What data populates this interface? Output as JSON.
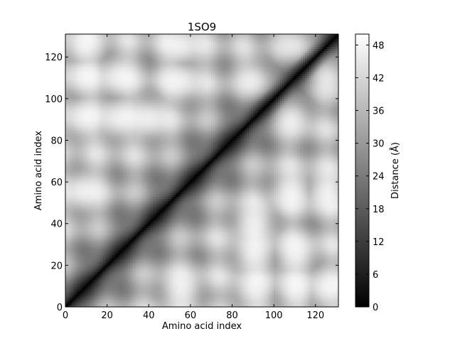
{
  "chart_data": {
    "type": "heatmap",
    "title": "1SO9",
    "xlabel": "Amino acid index",
    "ylabel": "Amino acid index",
    "n_residues": 131,
    "xlim": [
      0,
      131
    ],
    "ylim": [
      0,
      131
    ],
    "xticks": [
      0,
      20,
      40,
      60,
      80,
      100,
      120
    ],
    "yticks": [
      0,
      20,
      40,
      60,
      80,
      100,
      120
    ],
    "grid": false,
    "colormap": "gray",
    "colorbar": {
      "label": "Distance (Å)",
      "range": [
        0,
        50
      ],
      "ticks": [
        0,
        6,
        12,
        18,
        24,
        30,
        36,
        42,
        48
      ],
      "low_color": "#000000",
      "high_color": "#ffffff"
    },
    "diagonal_distance": 0,
    "max_distance": 50,
    "bright_region_centers": [
      {
        "x": 8,
        "y": 55
      },
      {
        "x": 8,
        "y": 90
      },
      {
        "x": 8,
        "y": 110
      },
      {
        "x": 8,
        "y": 125
      },
      {
        "x": 25,
        "y": 90
      },
      {
        "x": 25,
        "y": 110
      },
      {
        "x": 40,
        "y": 90
      },
      {
        "x": 55,
        "y": 108
      },
      {
        "x": 55,
        "y": 125
      },
      {
        "x": 90,
        "y": 108
      },
      {
        "x": 110,
        "y": 125
      },
      {
        "x": 55,
        "y": 8
      },
      {
        "x": 90,
        "y": 8
      },
      {
        "x": 110,
        "y": 8
      },
      {
        "x": 125,
        "y": 8
      },
      {
        "x": 90,
        "y": 25
      },
      {
        "x": 110,
        "y": 25
      },
      {
        "x": 90,
        "y": 40
      },
      {
        "x": 108,
        "y": 55
      },
      {
        "x": 125,
        "y": 55
      },
      {
        "x": 108,
        "y": 90
      },
      {
        "x": 125,
        "y": 110
      }
    ]
  }
}
